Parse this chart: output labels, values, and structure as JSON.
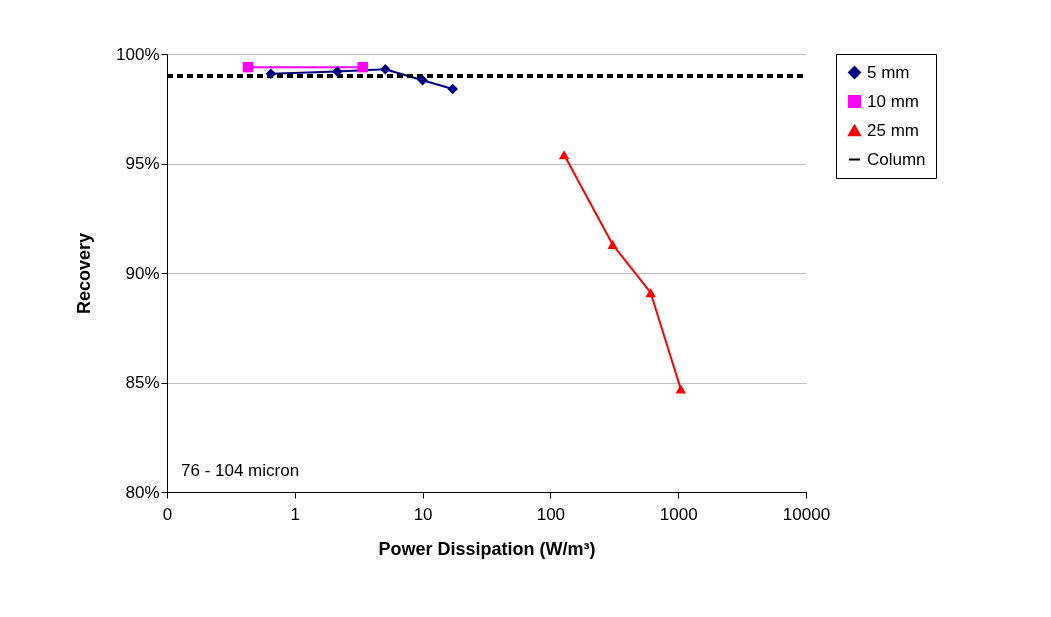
{
  "chart_data": {
    "type": "line",
    "xlabel": "Power Dissipation (W/m³)",
    "ylabel": "Recovery",
    "log": "x",
    "xlim": [
      0.1,
      10000
    ],
    "xticks": [
      {
        "value": 0.1,
        "label": "0"
      },
      1,
      10,
      100,
      1000,
      10000
    ],
    "ylim": [
      80,
      100
    ],
    "yticks": [
      {
        "value": 80,
        "label": "80%"
      },
      {
        "value": 85,
        "label": "85%"
      },
      {
        "value": 90,
        "label": "90%"
      },
      {
        "value": 95,
        "label": "95%"
      },
      {
        "value": 100,
        "label": "100%"
      }
    ],
    "grid": "y",
    "legend": "right",
    "annotations": [
      "76 - 104  micron"
    ],
    "series": [
      {
        "name": "5 mm",
        "color": "#000080",
        "marker": "diamond",
        "x": [
          0.65,
          2.15,
          5.1,
          10,
          17.2
        ],
        "values": [
          99.1,
          99.2,
          99.3,
          98.8,
          98.4
        ]
      },
      {
        "name": "10 mm",
        "color": "#ff00ff",
        "marker": "square",
        "x": [
          0.43,
          3.4
        ],
        "values": [
          99.4,
          99.4
        ]
      },
      {
        "name": "25 mm",
        "color": "#ff0000",
        "marker": "triangle",
        "x": [
          128,
          307,
          609,
          1047
        ],
        "values": [
          95.4,
          91.3,
          89.1,
          84.7
        ]
      },
      {
        "name": "Column",
        "color": "#000000",
        "marker": "none",
        "line_style": "dashed",
        "x": [
          0.1,
          10000
        ],
        "values": [
          99,
          99
        ]
      }
    ]
  }
}
